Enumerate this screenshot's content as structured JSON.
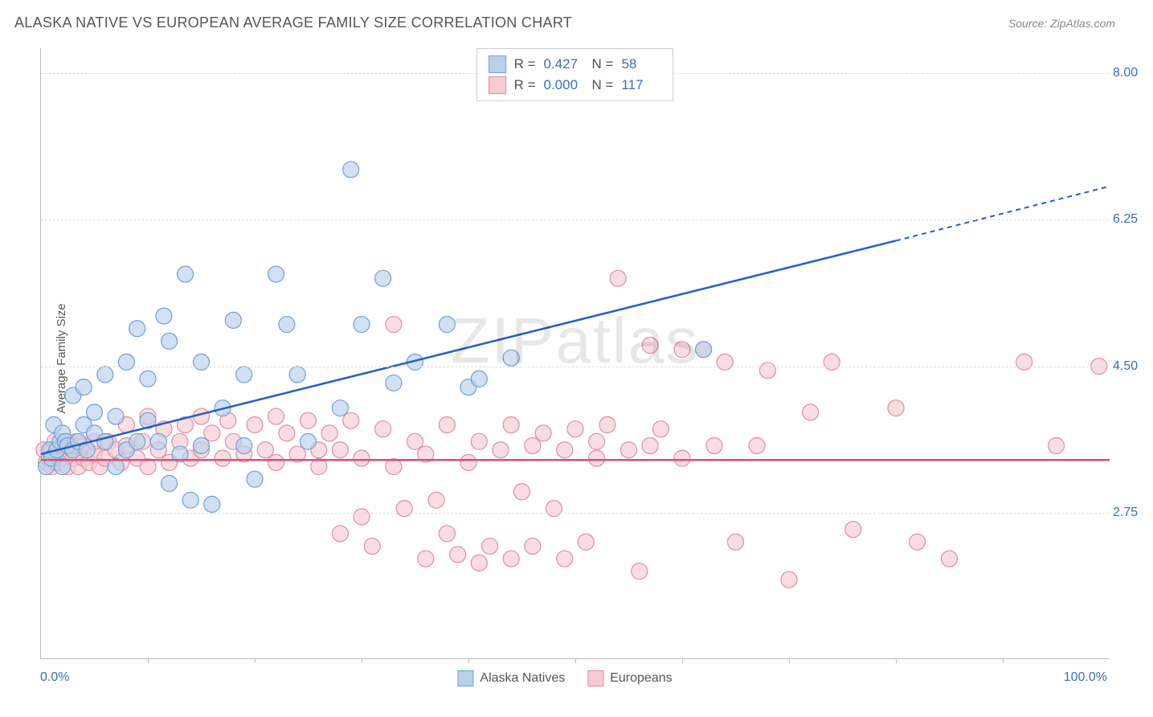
{
  "title": "ALASKA NATIVE VS EUROPEAN AVERAGE FAMILY SIZE CORRELATION CHART",
  "source_label": "Source: ZipAtlas.com",
  "y_axis_label": "Average Family Size",
  "x_axis": {
    "min_label": "0.0%",
    "max_label": "100.0%",
    "min": 0,
    "max": 100,
    "tick_count": 10
  },
  "y_axis": {
    "ticks": [
      {
        "value": 2.75,
        "label": "2.75"
      },
      {
        "value": 4.5,
        "label": "4.50"
      },
      {
        "value": 6.25,
        "label": "6.25"
      },
      {
        "value": 8.0,
        "label": "8.00"
      }
    ],
    "min": 1.0,
    "max": 8.3
  },
  "watermark": {
    "part1": "ZIP",
    "part2": "atlas"
  },
  "series": [
    {
      "name": "Alaska Natives",
      "fill": "#b9d0eb",
      "stroke": "#6f9fd8",
      "line_color": "#2660c4",
      "R_label": "R =",
      "R": "0.427",
      "N_label": "N =",
      "N": "58",
      "trend": {
        "x1": 0,
        "y1": 3.45,
        "x2": 80,
        "y2": 6.0,
        "dash_x2": 100,
        "dash_y2": 6.65
      },
      "marker_r": 10,
      "points": [
        [
          0.5,
          3.3
        ],
        [
          0.8,
          3.5
        ],
        [
          1,
          3.4
        ],
        [
          1.2,
          3.8
        ],
        [
          1.5,
          3.5
        ],
        [
          1.8,
          3.6
        ],
        [
          2,
          3.3
        ],
        [
          2,
          3.7
        ],
        [
          2.3,
          3.6
        ],
        [
          2.5,
          3.55
        ],
        [
          3,
          3.5
        ],
        [
          3,
          4.15
        ],
        [
          3.5,
          3.6
        ],
        [
          4,
          3.8
        ],
        [
          4,
          4.25
        ],
        [
          4.3,
          3.5
        ],
        [
          5,
          3.7
        ],
        [
          5,
          3.95
        ],
        [
          6,
          3.6
        ],
        [
          6,
          4.4
        ],
        [
          7,
          3.3
        ],
        [
          7,
          3.9
        ],
        [
          8,
          3.5
        ],
        [
          8,
          4.55
        ],
        [
          9,
          3.6
        ],
        [
          9,
          4.95
        ],
        [
          10,
          3.85
        ],
        [
          10,
          4.35
        ],
        [
          11,
          3.6
        ],
        [
          11.5,
          5.1
        ],
        [
          12,
          3.1
        ],
        [
          12,
          4.8
        ],
        [
          13,
          3.45
        ],
        [
          13.5,
          5.6
        ],
        [
          14,
          2.9
        ],
        [
          15,
          3.55
        ],
        [
          15,
          4.55
        ],
        [
          16,
          2.85
        ],
        [
          17,
          4.0
        ],
        [
          18,
          5.05
        ],
        [
          19,
          3.55
        ],
        [
          19,
          4.4
        ],
        [
          20,
          3.15
        ],
        [
          22,
          5.6
        ],
        [
          23,
          5.0
        ],
        [
          24,
          4.4
        ],
        [
          25,
          3.6
        ],
        [
          28,
          4.0
        ],
        [
          29,
          6.85
        ],
        [
          30,
          5.0
        ],
        [
          32,
          5.55
        ],
        [
          33,
          4.3
        ],
        [
          35,
          4.55
        ],
        [
          38,
          5.0
        ],
        [
          40,
          4.25
        ],
        [
          41,
          4.35
        ],
        [
          44,
          4.6
        ],
        [
          62,
          4.7
        ]
      ]
    },
    {
      "name": "Europeans",
      "fill": "#f6cbd4",
      "stroke": "#e48ba1",
      "line_color": "#d94f77",
      "R_label": "R =",
      "R": "0.000",
      "N_label": "N =",
      "N": "117",
      "trend": {
        "x1": 0,
        "y1": 3.38,
        "x2": 100,
        "y2": 3.38
      },
      "marker_r": 10,
      "points": [
        [
          0.3,
          3.5
        ],
        [
          0.5,
          3.35
        ],
        [
          0.8,
          3.4
        ],
        [
          1,
          3.3
        ],
        [
          1,
          3.5
        ],
        [
          1.3,
          3.6
        ],
        [
          1.5,
          3.35
        ],
        [
          1.8,
          3.4
        ],
        [
          2,
          3.45
        ],
        [
          2,
          3.55
        ],
        [
          2.2,
          3.6
        ],
        [
          2.5,
          3.3
        ],
        [
          2.5,
          3.5
        ],
        [
          3,
          3.4
        ],
        [
          3,
          3.55
        ],
        [
          3.3,
          3.6
        ],
        [
          3.5,
          3.3
        ],
        [
          4,
          3.4
        ],
        [
          4,
          3.55
        ],
        [
          4.5,
          3.35
        ],
        [
          5,
          3.45
        ],
        [
          5,
          3.6
        ],
        [
          5.5,
          3.3
        ],
        [
          6,
          3.4
        ],
        [
          6.3,
          3.6
        ],
        [
          7,
          3.5
        ],
        [
          7.5,
          3.35
        ],
        [
          8,
          3.55
        ],
        [
          8,
          3.8
        ],
        [
          9,
          3.4
        ],
        [
          9.5,
          3.6
        ],
        [
          10,
          3.3
        ],
        [
          10,
          3.9
        ],
        [
          11,
          3.5
        ],
        [
          11.5,
          3.75
        ],
        [
          12,
          3.35
        ],
        [
          13,
          3.6
        ],
        [
          13.5,
          3.8
        ],
        [
          14,
          3.4
        ],
        [
          15,
          3.5
        ],
        [
          15,
          3.9
        ],
        [
          16,
          3.7
        ],
        [
          17,
          3.4
        ],
        [
          17.5,
          3.85
        ],
        [
          18,
          3.6
        ],
        [
          19,
          3.45
        ],
        [
          20,
          3.8
        ],
        [
          21,
          3.5
        ],
        [
          22,
          3.35
        ],
        [
          22,
          3.9
        ],
        [
          23,
          3.7
        ],
        [
          24,
          3.45
        ],
        [
          25,
          3.85
        ],
        [
          26,
          3.5
        ],
        [
          26,
          3.3
        ],
        [
          27,
          3.7
        ],
        [
          28,
          2.5
        ],
        [
          28,
          3.5
        ],
        [
          29,
          3.85
        ],
        [
          30,
          2.7
        ],
        [
          30,
          3.4
        ],
        [
          31,
          2.35
        ],
        [
          32,
          3.75
        ],
        [
          33,
          3.3
        ],
        [
          33,
          5.0
        ],
        [
          34,
          2.8
        ],
        [
          35,
          3.6
        ],
        [
          36,
          2.2
        ],
        [
          36,
          3.45
        ],
        [
          37,
          2.9
        ],
        [
          38,
          2.5
        ],
        [
          38,
          3.8
        ],
        [
          39,
          2.25
        ],
        [
          40,
          3.35
        ],
        [
          41,
          2.15
        ],
        [
          41,
          3.6
        ],
        [
          42,
          2.35
        ],
        [
          43,
          3.5
        ],
        [
          44,
          2.2
        ],
        [
          44,
          3.8
        ],
        [
          45,
          3.0
        ],
        [
          46,
          2.35
        ],
        [
          46,
          3.55
        ],
        [
          47,
          3.7
        ],
        [
          48,
          2.8
        ],
        [
          49,
          2.2
        ],
        [
          49,
          3.5
        ],
        [
          50,
          3.75
        ],
        [
          51,
          2.4
        ],
        [
          52,
          3.4
        ],
        [
          52,
          3.6
        ],
        [
          53,
          3.8
        ],
        [
          54,
          5.55
        ],
        [
          55,
          3.5
        ],
        [
          56,
          2.05
        ],
        [
          57,
          3.55
        ],
        [
          57,
          4.75
        ],
        [
          58,
          3.75
        ],
        [
          60,
          3.4
        ],
        [
          60,
          4.7
        ],
        [
          62,
          4.7
        ],
        [
          63,
          3.55
        ],
        [
          64,
          4.55
        ],
        [
          65,
          2.4
        ],
        [
          67,
          3.55
        ],
        [
          68,
          4.45
        ],
        [
          70,
          1.95
        ],
        [
          72,
          3.95
        ],
        [
          74,
          4.55
        ],
        [
          76,
          2.55
        ],
        [
          80,
          4.0
        ],
        [
          82,
          2.4
        ],
        [
          85,
          2.2
        ],
        [
          92,
          4.55
        ],
        [
          95,
          3.55
        ],
        [
          99,
          4.5
        ]
      ]
    }
  ],
  "legend_bottom": [
    {
      "label": "Alaska Natives",
      "fill": "#b9d0eb",
      "stroke": "#6f9fd8"
    },
    {
      "label": "Europeans",
      "fill": "#f6cbd4",
      "stroke": "#e48ba1"
    }
  ]
}
